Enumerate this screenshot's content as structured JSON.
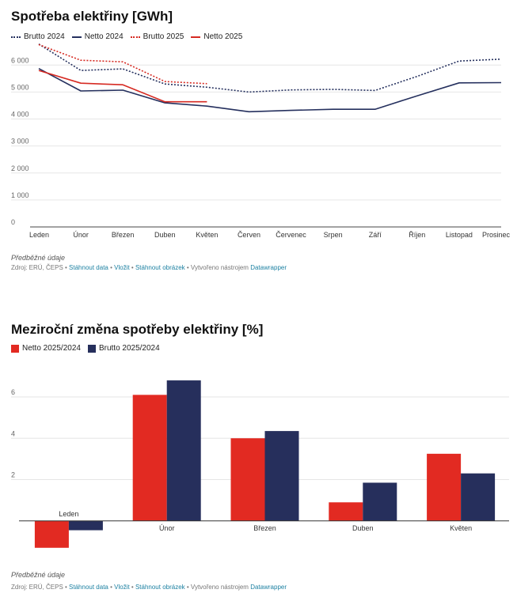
{
  "chart_data": [
    {
      "type": "line",
      "title": "Spotřeba elektřiny [GWh]",
      "categories": [
        "Leden",
        "Únor",
        "Březen",
        "Duben",
        "Květen",
        "Červen",
        "Červenec",
        "Srpen",
        "Září",
        "Říjen",
        "Listopad",
        "Prosinec"
      ],
      "ylim": [
        0,
        6800
      ],
      "yticks": [
        0,
        1000,
        2000,
        3000,
        4000,
        5000,
        6000
      ],
      "ytick_labels": [
        "0",
        "1 000",
        "2 000",
        "3 000",
        "4 000",
        "5 000",
        "6 000"
      ],
      "grid": true,
      "legend_position": "top-left",
      "series": [
        {
          "name": "Brutto 2024",
          "color": "#25305e",
          "style": "dotted",
          "values": [
            6780,
            5800,
            5860,
            5300,
            5180,
            5000,
            5080,
            5100,
            5060,
            5580,
            6150,
            6220
          ]
        },
        {
          "name": "Netto 2024",
          "color": "#25305e",
          "style": "solid",
          "values": [
            5870,
            5040,
            5070,
            4600,
            4480,
            4270,
            4320,
            4360,
            4360,
            4860,
            5340,
            5350
          ]
        },
        {
          "name": "Brutto 2025",
          "color": "#d62a22",
          "style": "dotted",
          "values": [
            6760,
            6180,
            6120,
            5390,
            5310,
            null,
            null,
            null,
            null,
            null,
            null,
            null
          ]
        },
        {
          "name": "Netto 2025",
          "color": "#d62a22",
          "style": "solid",
          "values": [
            5800,
            5330,
            5270,
            4640,
            4640,
            null,
            null,
            null,
            null,
            null,
            null,
            null
          ]
        }
      ],
      "footnote": "Předběžné údaje",
      "source": {
        "prefix": "Zdroj: ERÚ, ČEPS • ",
        "download_data": "Stáhnout data",
        "sep1": " • ",
        "embed": "Vložit",
        "sep2": " • ",
        "download_image": "Stáhnout obrázek",
        "sep3": " • Vytvořeno nástrojem ",
        "tool": "Datawrapper"
      }
    },
    {
      "type": "bar",
      "title": "Meziroční změna spotřeby elektřiny [%]",
      "categories": [
        "Leden",
        "Únor",
        "Březen",
        "Duben",
        "Květen"
      ],
      "ylim": [
        -1.5,
        7.3
      ],
      "yticks": [
        2,
        4,
        6
      ],
      "ytick_labels": [
        "2",
        "4",
        "6"
      ],
      "grid": true,
      "legend_position": "top-left",
      "series": [
        {
          "name": "Netto 2025/2024",
          "color": "#e22a22",
          "values": [
            -1.3,
            6.1,
            4.0,
            0.9,
            3.25
          ]
        },
        {
          "name": "Brutto 2025/2024",
          "color": "#262f5c",
          "values": [
            -0.45,
            6.8,
            4.35,
            1.85,
            2.3
          ]
        }
      ],
      "footnote": "Předběžné údaje",
      "source": {
        "prefix": "Zdroj: ERÚ, ČEPS • ",
        "download_data": "Stáhnout data",
        "sep1": " • ",
        "embed": "Vložit",
        "sep2": " • ",
        "download_image": "Stáhnout obrázek",
        "sep3": " • Vytvořeno nástrojem ",
        "tool": "Datawrapper"
      }
    }
  ]
}
